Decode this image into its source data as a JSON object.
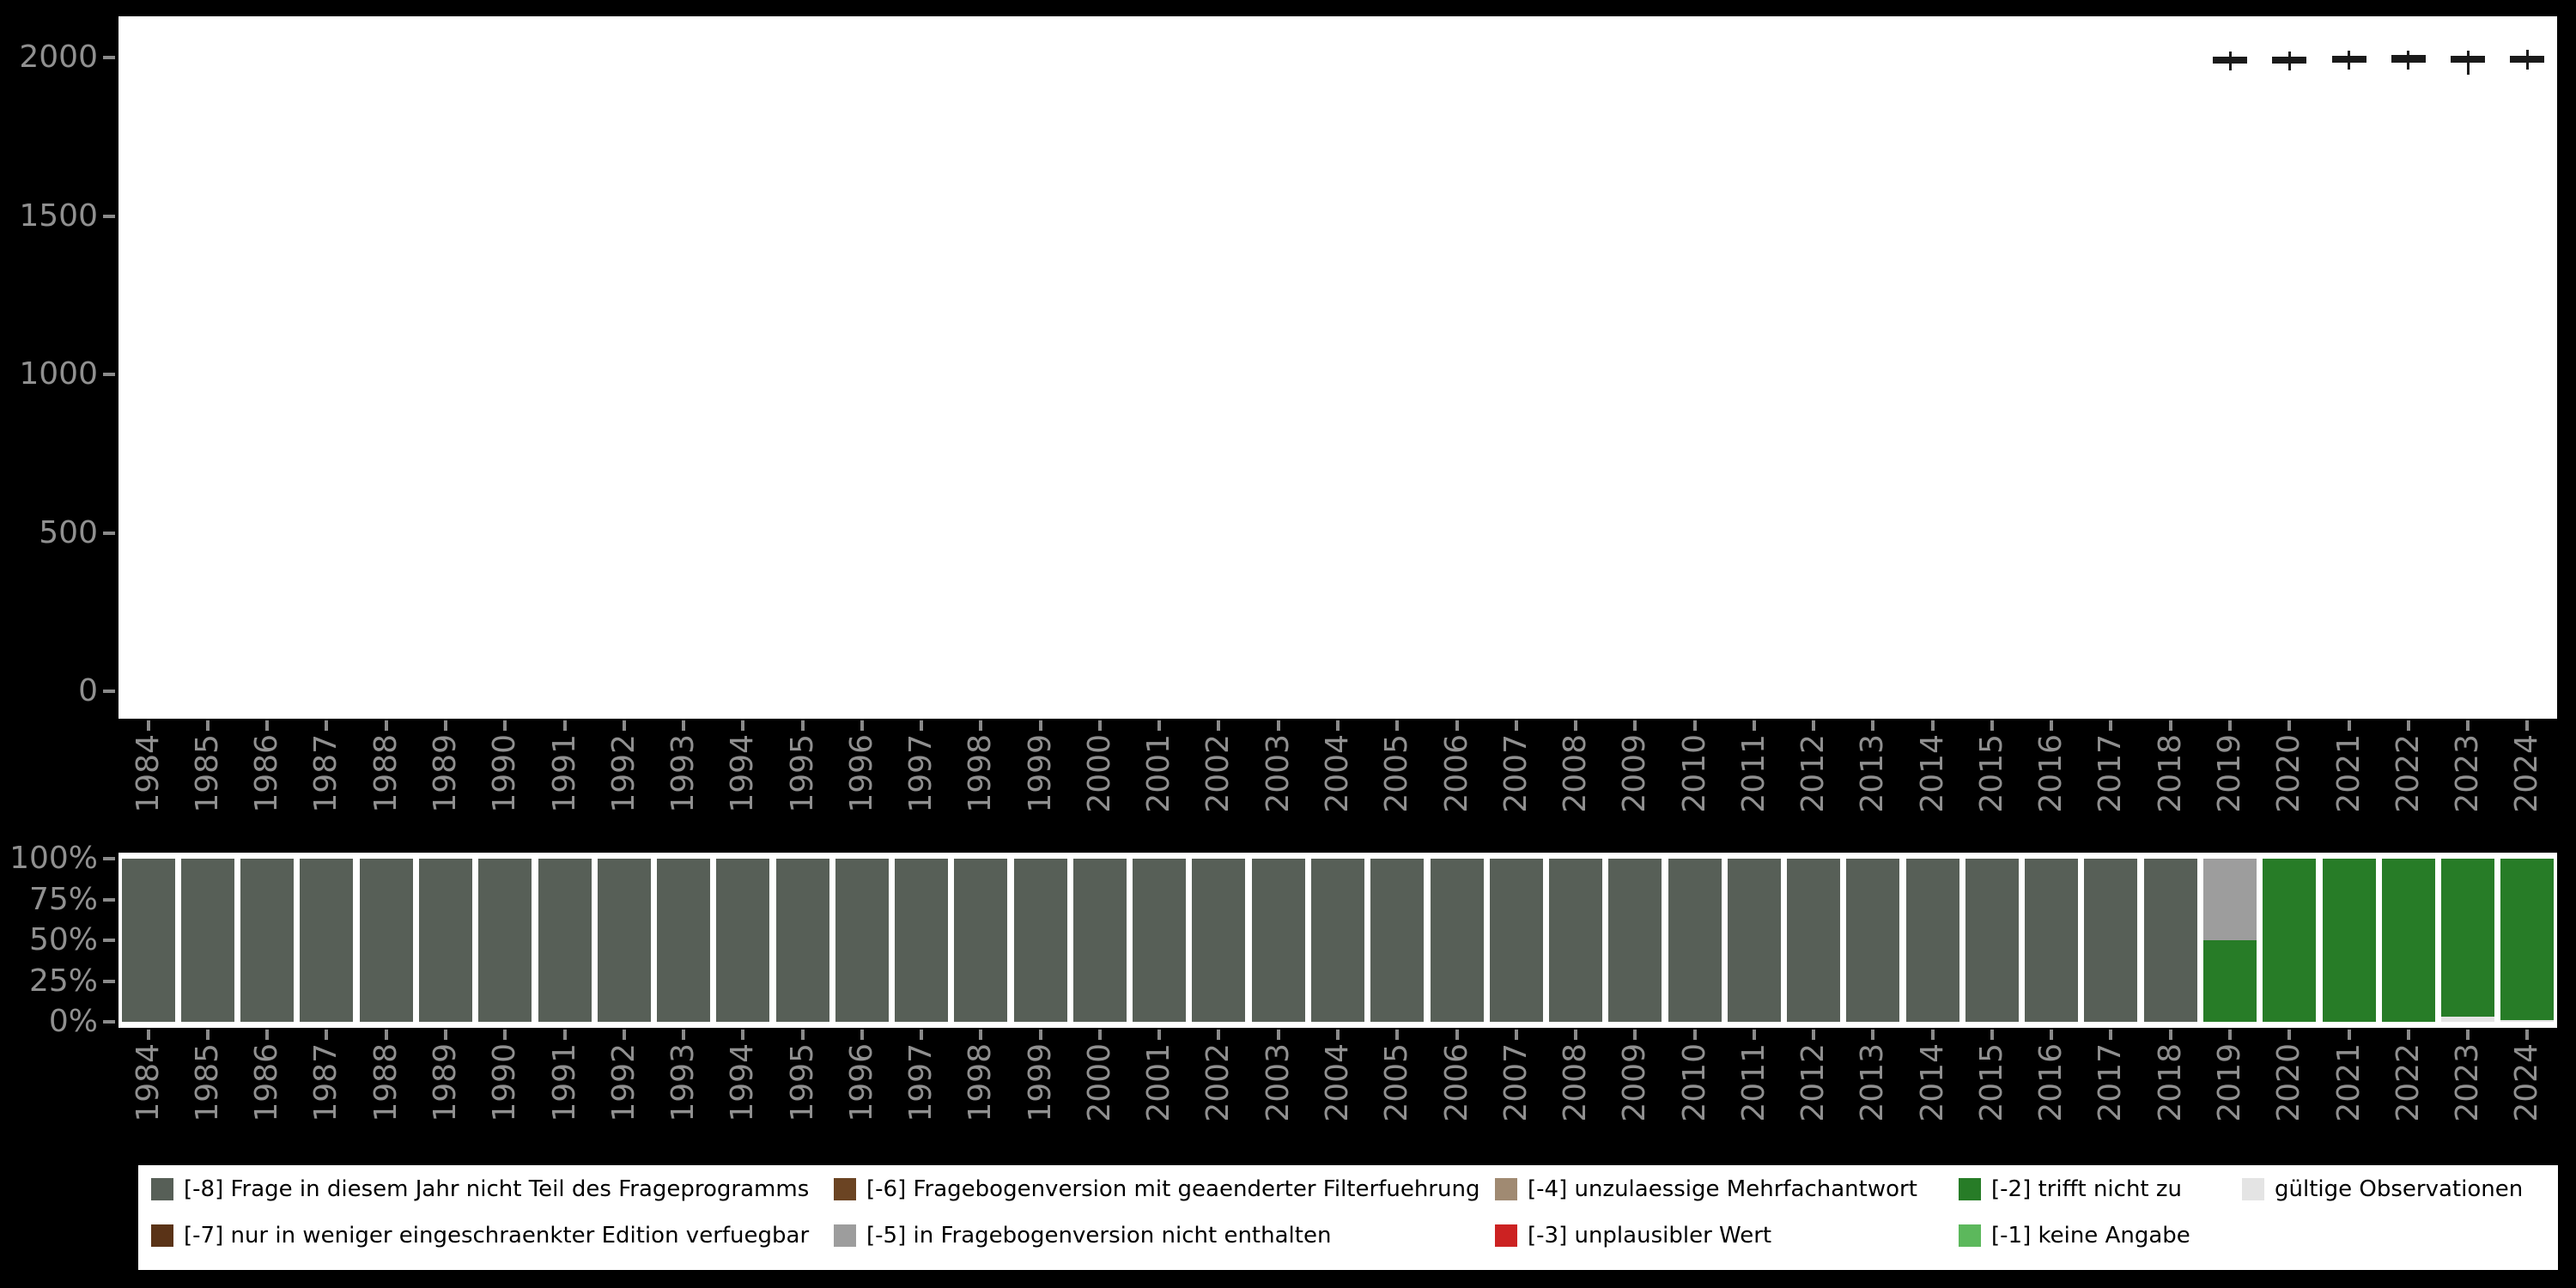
{
  "figure": {
    "background": "#000000",
    "panel_background": "#ffffff",
    "axis_text_color": "#909090",
    "tick_color": "#8a8a8a",
    "box_stroke": "#1a1a1a",
    "box_fill": "#ffffff"
  },
  "legend": {
    "background": "#ffffff",
    "text_color": "#000000",
    "items": [
      {
        "key": "m8",
        "label": "[-8] Frage in diesem Jahr nicht Teil des Frageprogramms",
        "color": "#575f57",
        "row": 0,
        "col": 0
      },
      {
        "key": "m7",
        "label": "[-7] nur in weniger eingeschraenkter Edition verfuegbar",
        "color": "#5a3317",
        "row": 1,
        "col": 0
      },
      {
        "key": "m6",
        "label": "[-6] Fragebogenversion mit geaenderter Filterfuehrung",
        "color": "#6b4423",
        "row": 0,
        "col": 1
      },
      {
        "key": "m5",
        "label": "[-5] in Fragebogenversion nicht enthalten",
        "color": "#9d9d9d",
        "row": 1,
        "col": 1
      },
      {
        "key": "m4",
        "label": "[-4] unzulaessige Mehrfachantwort",
        "color": "#a08a72",
        "row": 0,
        "col": 2
      },
      {
        "key": "m3",
        "label": "[-3] unplausibler Wert",
        "color": "#cc2222",
        "row": 1,
        "col": 2
      },
      {
        "key": "m2",
        "label": "[-2] trifft nicht zu",
        "color": "#277c27",
        "row": 0,
        "col": 3
      },
      {
        "key": "m1",
        "label": "[-1] keine Angabe",
        "color": "#5cb85c",
        "row": 1,
        "col": 3
      },
      {
        "key": "valid",
        "label": "gültige Observationen",
        "color": "#e4e4e4",
        "row": 0,
        "col": 4
      }
    ]
  },
  "chart_data": [
    {
      "type": "boxplot",
      "title": "",
      "xlabel": "",
      "ylabel": "",
      "ylim": [
        0,
        2130
      ],
      "yticks": [
        0,
        500,
        1000,
        1500,
        2000
      ],
      "grid": false,
      "categories": [
        "1984",
        "1985",
        "1986",
        "1987",
        "1988",
        "1989",
        "1990",
        "1991",
        "1992",
        "1993",
        "1994",
        "1995",
        "1996",
        "1997",
        "1998",
        "1999",
        "2000",
        "2001",
        "2002",
        "2003",
        "2004",
        "2005",
        "2006",
        "2007",
        "2008",
        "2009",
        "2010",
        "2011",
        "2012",
        "2013",
        "2014",
        "2015",
        "2016",
        "2017",
        "2018",
        "2019",
        "2020",
        "2021",
        "2022",
        "2023",
        "2024"
      ],
      "boxes": [
        {
          "category": "2019",
          "min": 1958,
          "q1": 1980,
          "median": 1992,
          "q3": 2002,
          "max": 2019
        },
        {
          "category": "2020",
          "min": 1960,
          "q1": 1982,
          "median": 1994,
          "q3": 2004,
          "max": 2020
        },
        {
          "category": "2021",
          "min": 1962,
          "q1": 1984,
          "median": 1996,
          "q3": 2006,
          "max": 2021
        },
        {
          "category": "2022",
          "min": 1963,
          "q1": 1985,
          "median": 1997,
          "q3": 2007,
          "max": 2022
        },
        {
          "category": "2023",
          "min": 1945,
          "q1": 1983,
          "median": 1995,
          "q3": 2006,
          "max": 2023
        },
        {
          "category": "2024",
          "min": 1962,
          "q1": 1984,
          "median": 1996,
          "q3": 2006,
          "max": 2024
        }
      ]
    },
    {
      "type": "stacked-bar-percent",
      "title": "",
      "xlabel": "",
      "ylabel": "",
      "grid": false,
      "categories": [
        "1984",
        "1985",
        "1986",
        "1987",
        "1988",
        "1989",
        "1990",
        "1991",
        "1992",
        "1993",
        "1994",
        "1995",
        "1996",
        "1997",
        "1998",
        "1999",
        "2000",
        "2001",
        "2002",
        "2003",
        "2004",
        "2005",
        "2006",
        "2007",
        "2008",
        "2009",
        "2010",
        "2011",
        "2012",
        "2013",
        "2014",
        "2015",
        "2016",
        "2017",
        "2018",
        "2019",
        "2020",
        "2021",
        "2022",
        "2023",
        "2024"
      ],
      "yticks": [
        {
          "value": 0,
          "label": "0%"
        },
        {
          "value": 25,
          "label": "25%"
        },
        {
          "value": 50,
          "label": "50%"
        },
        {
          "value": 75,
          "label": "75%"
        },
        {
          "value": 100,
          "label": "100%"
        }
      ],
      "stack_order_bottom_to_top": [
        "valid",
        "m2",
        "m5",
        "m8"
      ],
      "series": [
        {
          "key": "valid",
          "name": "gültige Observationen",
          "values": [
            0,
            0,
            0,
            0,
            0,
            0,
            0,
            0,
            0,
            0,
            0,
            0,
            0,
            0,
            0,
            0,
            0,
            0,
            0,
            0,
            0,
            0,
            0,
            0,
            0,
            0,
            0,
            0,
            0,
            0,
            0,
            0,
            0,
            0,
            0,
            0,
            0,
            0,
            0,
            3,
            1
          ]
        },
        {
          "key": "m2",
          "name": "[-2] trifft nicht zu",
          "values": [
            0,
            0,
            0,
            0,
            0,
            0,
            0,
            0,
            0,
            0,
            0,
            0,
            0,
            0,
            0,
            0,
            0,
            0,
            0,
            0,
            0,
            0,
            0,
            0,
            0,
            0,
            0,
            0,
            0,
            0,
            0,
            0,
            0,
            0,
            0,
            50,
            100,
            100,
            100,
            97,
            99
          ]
        },
        {
          "key": "m5",
          "name": "[-5] in Fragebogenversion nicht enthalten",
          "values": [
            0,
            0,
            0,
            0,
            0,
            0,
            0,
            0,
            0,
            0,
            0,
            0,
            0,
            0,
            0,
            0,
            0,
            0,
            0,
            0,
            0,
            0,
            0,
            0,
            0,
            0,
            0,
            0,
            0,
            0,
            0,
            0,
            0,
            0,
            0,
            50,
            0,
            0,
            0,
            0,
            0
          ]
        },
        {
          "key": "m8",
          "name": "[-8] Frage in diesem Jahr nicht Teil des Frageprogramms",
          "values": [
            100,
            100,
            100,
            100,
            100,
            100,
            100,
            100,
            100,
            100,
            100,
            100,
            100,
            100,
            100,
            100,
            100,
            100,
            100,
            100,
            100,
            100,
            100,
            100,
            100,
            100,
            100,
            100,
            100,
            100,
            100,
            100,
            100,
            100,
            100,
            0,
            0,
            0,
            0,
            0,
            0
          ]
        }
      ]
    }
  ]
}
